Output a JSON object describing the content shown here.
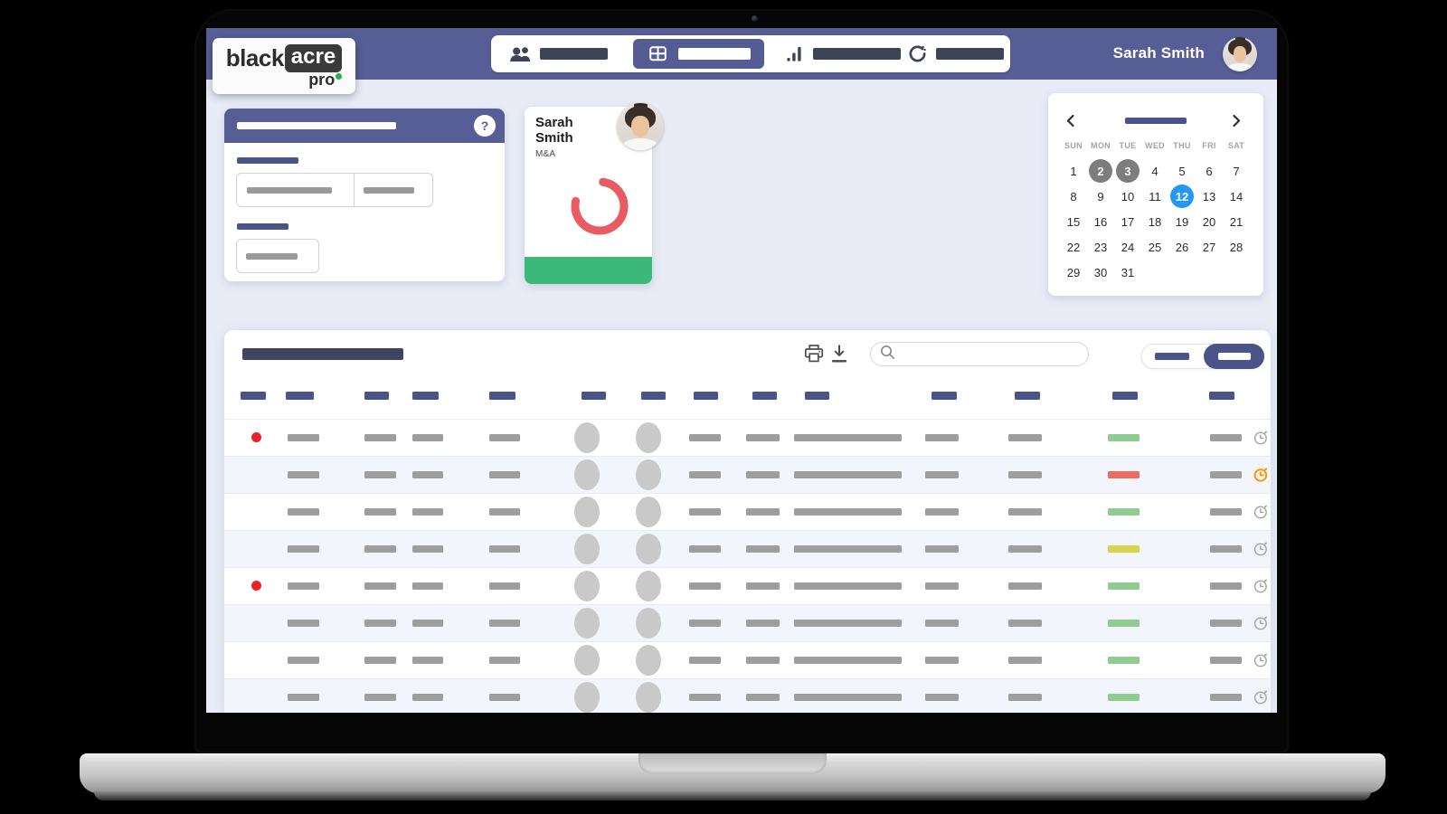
{
  "brand": {
    "part1": "black",
    "part2": "acre",
    "part3": "pro"
  },
  "header": {
    "user_name": "Sarah Smith"
  },
  "nav_tabs": [
    {
      "icon": "people-icon",
      "selected": false
    },
    {
      "icon": "table-icon",
      "selected": true
    },
    {
      "icon": "bar-chart-icon",
      "selected": false
    },
    {
      "icon": "refresh-icon",
      "selected": false
    }
  ],
  "form_card": {
    "help_label": "?"
  },
  "profile_card": {
    "first_name": "Sarah",
    "last_name": "Smith",
    "department": "M&A",
    "donut_color": "#E85B62",
    "footer_color": "#3CB878"
  },
  "calendar": {
    "day_headers": [
      "SUN",
      "MON",
      "TUE",
      "WED",
      "THU",
      "FRI",
      "SAT"
    ],
    "dates": [
      1,
      2,
      3,
      4,
      5,
      6,
      7,
      8,
      9,
      10,
      11,
      12,
      13,
      14,
      15,
      16,
      17,
      18,
      19,
      20,
      21,
      22,
      23,
      24,
      25,
      26,
      27,
      28,
      29,
      30,
      31
    ],
    "muted_dates": [
      2,
      3
    ],
    "selected_date": 12,
    "selected_color": "#2499F1",
    "muted_color": "#7D7D7D"
  },
  "table": {
    "rows": [
      {
        "flagged": true,
        "status": "green",
        "timer": "normal"
      },
      {
        "flagged": false,
        "status": "red",
        "timer": "alert"
      },
      {
        "flagged": false,
        "status": "green",
        "timer": "normal"
      },
      {
        "flagged": false,
        "status": "yellow",
        "timer": "normal"
      },
      {
        "flagged": true,
        "status": "green",
        "timer": "normal"
      },
      {
        "flagged": false,
        "status": "green",
        "timer": "normal"
      },
      {
        "flagged": false,
        "status": "green",
        "timer": "normal"
      },
      {
        "flagged": false,
        "status": "green",
        "timer": "normal"
      }
    ],
    "status_colors": {
      "green": "#90CB90",
      "red": "#EC6B63",
      "yellow": "#D8D44E"
    },
    "flag_color": "#E8232A",
    "timer_colors": {
      "normal": "#A2A2A2",
      "alert": "#F59C0C"
    }
  },
  "colors": {
    "navbar": "#575E95",
    "accent_bar": "#4A5488",
    "page_bg": "#E9ECF7",
    "brand_green": "#21B24B",
    "title_bar": "#3F4560"
  }
}
